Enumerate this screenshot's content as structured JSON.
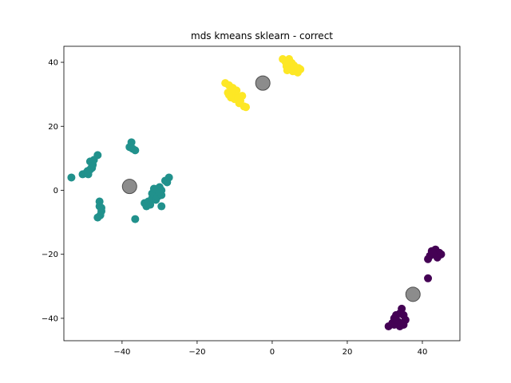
{
  "chart_data": {
    "type": "scatter",
    "title": "mds kmeans sklearn - correct",
    "xlabel": "",
    "ylabel": "",
    "xlim": [
      -55.5,
      50.0
    ],
    "ylim": [
      -47.0,
      45.0
    ],
    "xticks": [
      -40,
      -20,
      0,
      20,
      40
    ],
    "yticks": [
      -40,
      -20,
      0,
      20,
      40
    ],
    "tick_labels": {
      "x": [
        "−40",
        "−20",
        "0",
        "20",
        "40"
      ],
      "y": [
        "−40",
        "−20",
        "0",
        "20",
        "40"
      ]
    },
    "grid": false,
    "series": [
      {
        "color": "#fde725",
        "points": [
          [
            -12.5,
            33.5
          ],
          [
            -11.5,
            32.8
          ],
          [
            -10.5,
            32.0
          ],
          [
            -11.8,
            30.5
          ],
          [
            -10.8,
            29.8
          ],
          [
            -9.8,
            30.8
          ],
          [
            -9.2,
            29.3
          ],
          [
            -8.5,
            28.0
          ],
          [
            -7.5,
            26.2
          ],
          [
            -8.8,
            27.2
          ],
          [
            -10.0,
            28.5
          ],
          [
            -11.0,
            29.0
          ],
          [
            -9.5,
            31.2
          ],
          [
            -8.0,
            29.5
          ],
          [
            -7.0,
            26.0
          ],
          [
            -10.5,
            31.5
          ],
          [
            -9.0,
            28.8
          ],
          [
            -11.5,
            29.8
          ],
          [
            2.8,
            41.0
          ],
          [
            4.5,
            41.0
          ],
          [
            3.5,
            40.2
          ],
          [
            5.2,
            39.8
          ],
          [
            3.8,
            38.8
          ],
          [
            4.8,
            38.0
          ],
          [
            6.0,
            38.5
          ],
          [
            5.5,
            37.2
          ],
          [
            6.5,
            37.8
          ],
          [
            7.5,
            37.8
          ],
          [
            6.8,
            36.8
          ],
          [
            4.2,
            39.2
          ],
          [
            5.8,
            39.0
          ],
          [
            4.0,
            37.5
          ],
          [
            7.0,
            38.2
          ]
        ]
      },
      {
        "color": "#21918c",
        "points": [
          [
            -53.5,
            4.0
          ],
          [
            -50.5,
            5.0
          ],
          [
            -49.5,
            5.5
          ],
          [
            -49.0,
            5.0
          ],
          [
            -48.5,
            6.5
          ],
          [
            -48.0,
            7.0
          ],
          [
            -47.8,
            8.0
          ],
          [
            -48.5,
            9.0
          ],
          [
            -47.5,
            9.5
          ],
          [
            -46.5,
            11.0
          ],
          [
            -48.0,
            7.5
          ],
          [
            -49.2,
            6.0
          ],
          [
            -46.0,
            -3.5
          ],
          [
            -46.0,
            -5.0
          ],
          [
            -45.5,
            -6.5
          ],
          [
            -45.8,
            -7.8
          ],
          [
            -46.5,
            -8.5
          ],
          [
            -45.5,
            -5.5
          ],
          [
            -37.5,
            15.0
          ],
          [
            -38.0,
            13.5
          ],
          [
            -36.5,
            12.5
          ],
          [
            -37.2,
            13.0
          ],
          [
            -36.5,
            -9.0
          ],
          [
            -34.0,
            -4.0
          ],
          [
            -33.0,
            -3.5
          ],
          [
            -32.5,
            -4.5
          ],
          [
            -32.0,
            -2.5
          ],
          [
            -31.5,
            -1.5
          ],
          [
            -31.0,
            0.0
          ],
          [
            -30.5,
            0.5
          ],
          [
            -30.0,
            1.0
          ],
          [
            -31.0,
            -3.0
          ],
          [
            -32.0,
            -1.0
          ],
          [
            -30.5,
            -2.0
          ],
          [
            -29.5,
            -1.5
          ],
          [
            -29.5,
            0.0
          ],
          [
            -28.5,
            3.0
          ],
          [
            -28.0,
            2.5
          ],
          [
            -27.5,
            4.0
          ],
          [
            -29.5,
            -5.0
          ],
          [
            -33.5,
            -5.0
          ],
          [
            -31.5,
            0.5
          ],
          [
            -30.0,
            -0.5
          ]
        ]
      },
      {
        "color": "#440154",
        "points": [
          [
            42.5,
            -19.0
          ],
          [
            43.5,
            -18.5
          ],
          [
            44.5,
            -19.5
          ],
          [
            45.0,
            -20.0
          ],
          [
            42.0,
            -20.5
          ],
          [
            41.5,
            -21.5
          ],
          [
            43.0,
            -20.0
          ],
          [
            44.0,
            -21.0
          ],
          [
            42.8,
            -19.8
          ],
          [
            41.5,
            -27.5
          ],
          [
            31.0,
            -42.5
          ],
          [
            32.0,
            -41.5
          ],
          [
            32.5,
            -40.0
          ],
          [
            33.0,
            -39.0
          ],
          [
            34.0,
            -38.5
          ],
          [
            34.5,
            -37.0
          ],
          [
            35.0,
            -39.0
          ],
          [
            35.5,
            -40.5
          ],
          [
            35.0,
            -42.0
          ],
          [
            33.5,
            -41.0
          ],
          [
            34.0,
            -42.5
          ],
          [
            32.5,
            -42.0
          ],
          [
            33.0,
            -40.5
          ],
          [
            34.5,
            -41.5
          ]
        ]
      }
    ],
    "centroids": {
      "color": "#808080",
      "points": [
        [
          -2.5,
          33.5
        ],
        [
          -38.0,
          1.2
        ],
        [
          37.5,
          -32.5
        ]
      ]
    }
  }
}
